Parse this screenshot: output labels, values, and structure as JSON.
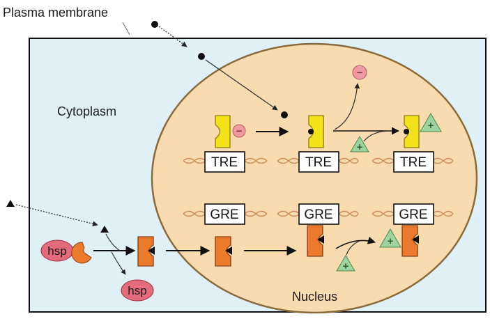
{
  "labels": {
    "plasma_membrane": "Plasma membrane",
    "cytoplasm": "Cytoplasm",
    "nucleus": "Nucleus"
  },
  "response_elements": {
    "tre": [
      "TRE",
      "TRE",
      "TRE"
    ],
    "gre": [
      "GRE",
      "GRE",
      "GRE"
    ]
  },
  "hsp": [
    "hsp",
    "hsp"
  ],
  "signs": {
    "minus": "−",
    "plus": "+"
  },
  "colors": {
    "cytoplasm_fill": "#dff1f7",
    "nucleus_fill": "#f8dcb0",
    "tre_receptor": "#f2e21a",
    "gre_receptor": "#ec7a2c",
    "corepressor": "#ee9aa0",
    "coactivator": "#9fd4a0",
    "hsp": "#e46b7b",
    "dna": "#cf8b55"
  }
}
